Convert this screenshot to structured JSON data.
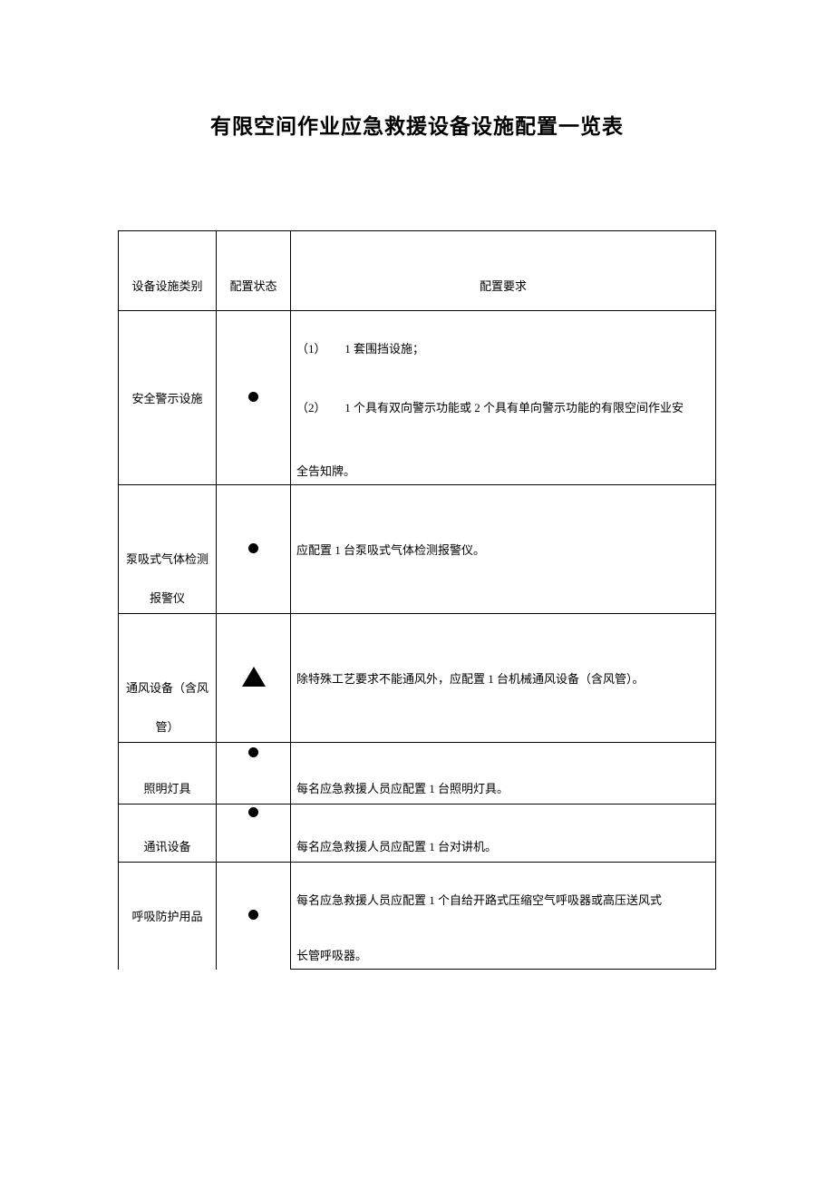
{
  "title": "有限空间作业应急救援设备设施配置一览表",
  "headers": {
    "category": "设备设施类别",
    "status": "配置状态",
    "requirement": "配置要求"
  },
  "status_symbols": {
    "required": "circle",
    "conditional": "triangle"
  },
  "colors": {
    "background": "#ffffff",
    "text": "#000000",
    "border": "#000000",
    "symbol_fill": "#000000"
  },
  "typography": {
    "title_fontsize": 23,
    "title_weight": "bold",
    "body_fontsize": 13,
    "font_family": "SimSun"
  },
  "rows": [
    {
      "category": "安全警示设施",
      "status": "required",
      "req_line1_num": "（1）",
      "req_line1_text": "1 套围挡设施；",
      "req_line2_num": "（2）",
      "req_line2_text": "1 个具有双向警示功能或 2 个具有单向警示功能的有限空间作业安",
      "req_line3": "全告知牌。"
    },
    {
      "category_l1": "泵吸式气体检测",
      "category_l2": "报警仪",
      "status": "required",
      "req": "应配置 1 台泵吸式气体检测报警仪。"
    },
    {
      "category_l1": "通风设备（含风",
      "category_l2": "管）",
      "status": "conditional",
      "req": "除特殊工艺要求不能通风外，应配置 1 台机械通风设备（含风管）。"
    },
    {
      "category": "照明灯具",
      "status": "required",
      "req": "每名应急救援人员应配置 1 台照明灯具。"
    },
    {
      "category": "通讯设备",
      "status": "required",
      "req": "每名应急救援人员应配置 1 台对讲机。"
    },
    {
      "category": "呼吸防护用品",
      "status": "required",
      "req_l1": "每名应急救援人员应配置 1 个自给开路式压缩空气呼吸器或高压送风式",
      "req_l2": "长管呼吸器。"
    }
  ]
}
